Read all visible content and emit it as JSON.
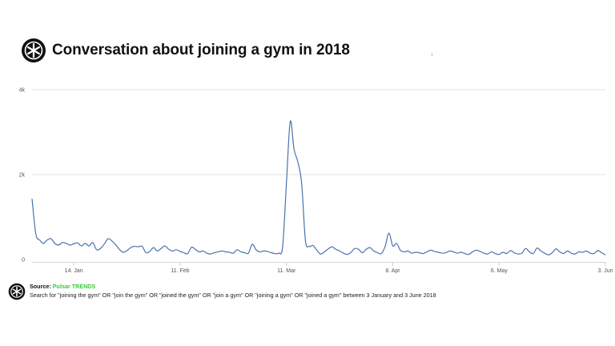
{
  "header": {
    "title": "Conversation about joining a gym in 2018"
  },
  "colors": {
    "line": "#4a72ad",
    "grid": "#e2e2e2",
    "source_brand": "#3ac93a",
    "text": "#111111"
  },
  "icons": {
    "logo": "pulsar-logo-icon"
  },
  "footer": {
    "source_label": "Source:",
    "source_name": "Pulsar TRENDS",
    "description": "Search for \"joining the gym\" OR \"join the gym\" OR \"joined the gym\" OR \"join a gym\" OR \"joining a gym\" OR \"joined a gym\" between 3 January and 3 June 2018"
  },
  "chart_data": {
    "type": "line",
    "title": "Conversation about joining a gym in 2018",
    "xlabel": "",
    "ylabel": "",
    "x_start": "2018-01-03",
    "x_end": "2018-06-03",
    "x_ticks": [
      {
        "date": "2018-01-14",
        "label": "14. Jan"
      },
      {
        "date": "2018-02-11",
        "label": "11. Feb"
      },
      {
        "date": "2018-03-11",
        "label": "11. Mar"
      },
      {
        "date": "2018-04-08",
        "label": "8. Apr"
      },
      {
        "date": "2018-05-06",
        "label": "6. May"
      },
      {
        "date": "2018-06-03",
        "label": "3. Jun"
      }
    ],
    "y_ticks": [
      {
        "value": 0,
        "label": "0"
      },
      {
        "value": 2000,
        "label": "2k"
      },
      {
        "value": 4000,
        "label": "4k"
      }
    ],
    "ylim": [
      0,
      4000
    ],
    "grid": "horizontal",
    "legend": "none",
    "series": [
      {
        "points": [
          [
            "2018-01-03",
            1430
          ],
          [
            "2018-01-04",
            600
          ],
          [
            "2018-01-05",
            460
          ],
          [
            "2018-01-06",
            380
          ],
          [
            "2018-01-07",
            460
          ],
          [
            "2018-01-08",
            490
          ],
          [
            "2018-01-09",
            380
          ],
          [
            "2018-01-10",
            340
          ],
          [
            "2018-01-11",
            400
          ],
          [
            "2018-01-12",
            380
          ],
          [
            "2018-01-13",
            340
          ],
          [
            "2018-01-14",
            370
          ],
          [
            "2018-01-15",
            390
          ],
          [
            "2018-01-16",
            320
          ],
          [
            "2018-01-17",
            380
          ],
          [
            "2018-01-18",
            320
          ],
          [
            "2018-01-19",
            400
          ],
          [
            "2018-01-20",
            230
          ],
          [
            "2018-01-21",
            260
          ],
          [
            "2018-01-22",
            360
          ],
          [
            "2018-01-23",
            490
          ],
          [
            "2018-01-24",
            440
          ],
          [
            "2018-01-25",
            350
          ],
          [
            "2018-01-26",
            240
          ],
          [
            "2018-01-27",
            170
          ],
          [
            "2018-01-28",
            210
          ],
          [
            "2018-01-29",
            280
          ],
          [
            "2018-01-30",
            310
          ],
          [
            "2018-01-31",
            300
          ],
          [
            "2018-02-01",
            310
          ],
          [
            "2018-02-02",
            160
          ],
          [
            "2018-02-03",
            190
          ],
          [
            "2018-02-04",
            280
          ],
          [
            "2018-02-05",
            200
          ],
          [
            "2018-02-06",
            260
          ],
          [
            "2018-02-07",
            320
          ],
          [
            "2018-02-08",
            240
          ],
          [
            "2018-02-09",
            200
          ],
          [
            "2018-02-10",
            230
          ],
          [
            "2018-02-11",
            190
          ],
          [
            "2018-02-12",
            160
          ],
          [
            "2018-02-13",
            140
          ],
          [
            "2018-02-14",
            290
          ],
          [
            "2018-02-15",
            240
          ],
          [
            "2018-02-16",
            180
          ],
          [
            "2018-02-17",
            200
          ],
          [
            "2018-02-18",
            150
          ],
          [
            "2018-02-19",
            130
          ],
          [
            "2018-02-20",
            160
          ],
          [
            "2018-02-21",
            180
          ],
          [
            "2018-02-22",
            200
          ],
          [
            "2018-02-23",
            180
          ],
          [
            "2018-02-24",
            170
          ],
          [
            "2018-02-25",
            150
          ],
          [
            "2018-02-26",
            230
          ],
          [
            "2018-02-27",
            180
          ],
          [
            "2018-02-28",
            160
          ],
          [
            "2018-03-01",
            150
          ],
          [
            "2018-03-02",
            360
          ],
          [
            "2018-03-03",
            230
          ],
          [
            "2018-03-04",
            180
          ],
          [
            "2018-03-05",
            200
          ],
          [
            "2018-03-06",
            190
          ],
          [
            "2018-03-07",
            160
          ],
          [
            "2018-03-08",
            140
          ],
          [
            "2018-03-09",
            150
          ],
          [
            "2018-03-10",
            300
          ],
          [
            "2018-03-11",
            1800
          ],
          [
            "2018-03-12",
            3250
          ],
          [
            "2018-03-13",
            2600
          ],
          [
            "2018-03-14",
            2300
          ],
          [
            "2018-03-15",
            1800
          ],
          [
            "2018-03-16",
            450
          ],
          [
            "2018-03-17",
            310
          ],
          [
            "2018-03-18",
            330
          ],
          [
            "2018-03-19",
            220
          ],
          [
            "2018-03-20",
            130
          ],
          [
            "2018-03-21",
            180
          ],
          [
            "2018-03-22",
            250
          ],
          [
            "2018-03-23",
            300
          ],
          [
            "2018-03-24",
            240
          ],
          [
            "2018-03-25",
            200
          ],
          [
            "2018-03-26",
            150
          ],
          [
            "2018-03-27",
            120
          ],
          [
            "2018-03-28",
            170
          ],
          [
            "2018-03-29",
            260
          ],
          [
            "2018-03-30",
            240
          ],
          [
            "2018-03-31",
            160
          ],
          [
            "2018-04-01",
            240
          ],
          [
            "2018-04-02",
            280
          ],
          [
            "2018-04-03",
            200
          ],
          [
            "2018-04-04",
            160
          ],
          [
            "2018-04-05",
            140
          ],
          [
            "2018-04-06",
            310
          ],
          [
            "2018-04-07",
            620
          ],
          [
            "2018-04-08",
            320
          ],
          [
            "2018-04-09",
            380
          ],
          [
            "2018-04-10",
            220
          ],
          [
            "2018-04-11",
            180
          ],
          [
            "2018-04-12",
            200
          ],
          [
            "2018-04-13",
            150
          ],
          [
            "2018-04-14",
            170
          ],
          [
            "2018-04-15",
            160
          ],
          [
            "2018-04-16",
            140
          ],
          [
            "2018-04-17",
            180
          ],
          [
            "2018-04-18",
            220
          ],
          [
            "2018-04-19",
            190
          ],
          [
            "2018-04-20",
            170
          ],
          [
            "2018-04-21",
            150
          ],
          [
            "2018-04-22",
            160
          ],
          [
            "2018-04-23",
            200
          ],
          [
            "2018-04-24",
            180
          ],
          [
            "2018-04-25",
            150
          ],
          [
            "2018-04-26",
            170
          ],
          [
            "2018-04-27",
            140
          ],
          [
            "2018-04-28",
            120
          ],
          [
            "2018-04-29",
            180
          ],
          [
            "2018-04-30",
            220
          ],
          [
            "2018-05-01",
            190
          ],
          [
            "2018-05-02",
            150
          ],
          [
            "2018-05-03",
            130
          ],
          [
            "2018-05-04",
            180
          ],
          [
            "2018-05-05",
            140
          ],
          [
            "2018-05-06",
            120
          ],
          [
            "2018-05-07",
            170
          ],
          [
            "2018-05-08",
            140
          ],
          [
            "2018-05-09",
            210
          ],
          [
            "2018-05-10",
            160
          ],
          [
            "2018-05-11",
            130
          ],
          [
            "2018-05-12",
            150
          ],
          [
            "2018-05-13",
            260
          ],
          [
            "2018-05-14",
            180
          ],
          [
            "2018-05-15",
            140
          ],
          [
            "2018-05-16",
            270
          ],
          [
            "2018-05-17",
            200
          ],
          [
            "2018-05-18",
            150
          ],
          [
            "2018-05-19",
            110
          ],
          [
            "2018-05-20",
            160
          ],
          [
            "2018-05-21",
            250
          ],
          [
            "2018-05-22",
            180
          ],
          [
            "2018-05-23",
            140
          ],
          [
            "2018-05-24",
            200
          ],
          [
            "2018-05-25",
            150
          ],
          [
            "2018-05-26",
            130
          ],
          [
            "2018-05-27",
            180
          ],
          [
            "2018-05-28",
            170
          ],
          [
            "2018-05-29",
            200
          ],
          [
            "2018-05-30",
            150
          ],
          [
            "2018-05-31",
            140
          ],
          [
            "2018-06-01",
            210
          ],
          [
            "2018-06-02",
            160
          ],
          [
            "2018-06-03",
            110
          ]
        ]
      }
    ]
  }
}
